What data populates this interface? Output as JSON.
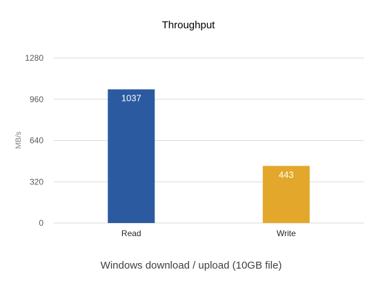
{
  "chart_data": {
    "type": "bar",
    "title": "Throughput",
    "xlabel": "Windows download / upload (10GB file)",
    "ylabel": "MB/s",
    "categories": [
      "Read",
      "Write"
    ],
    "values": [
      1037,
      443
    ],
    "data_labels": [
      "1037",
      "443"
    ],
    "bar_colors": [
      "#2b5aa0",
      "#e3a82b"
    ],
    "ylim": [
      0,
      1280
    ],
    "yticks": [
      0,
      320,
      640,
      960,
      1280
    ],
    "grid": true,
    "legend": "none"
  }
}
